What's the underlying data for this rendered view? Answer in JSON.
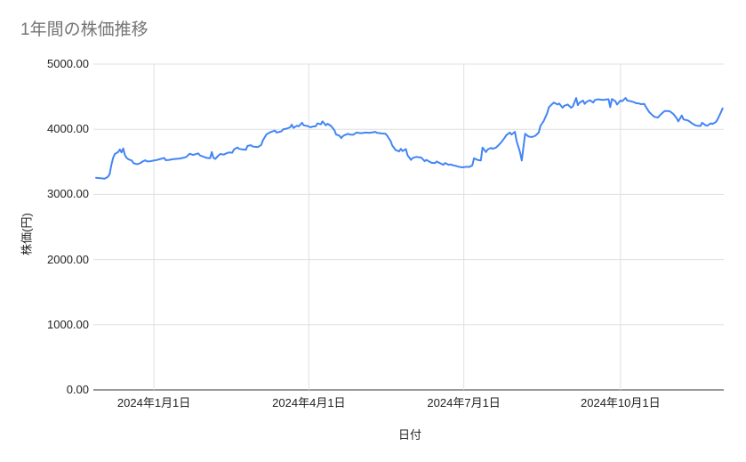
{
  "chart_data": {
    "type": "line",
    "title": "1年間の株価推移",
    "xlabel": "日付",
    "ylabel": "株価(円)",
    "ylim": [
      0,
      5000
    ],
    "y_ticks": [
      "0.00",
      "1000.00",
      "2000.00",
      "3000.00",
      "4000.00",
      "5000.00"
    ],
    "x_ticks": [
      {
        "label": "2024年1月1日",
        "day": 34
      },
      {
        "label": "2024年4月1日",
        "day": 125
      },
      {
        "label": "2024年7月1日",
        "day": 216
      },
      {
        "label": "2024年10月1日",
        "day": 308
      }
    ],
    "x_start_date": "2023-11-28",
    "x_end_date": "2024-11-29",
    "x_unit": "days_since_x_start_date",
    "grid": true,
    "legend": "none",
    "colors": {
      "line": "#4285f4",
      "grid": "#e0e0e0",
      "axis_line": "#333333",
      "tick_text": "#222222",
      "axis_title_text": "#222222",
      "title_text": "#757575",
      "background": "#ffffff"
    },
    "series": [
      {
        "name": "株価",
        "points": [
          [
            0,
            3255
          ],
          [
            2,
            3250
          ],
          [
            4,
            3245
          ],
          [
            5,
            3240
          ],
          [
            7,
            3270
          ],
          [
            8,
            3310
          ],
          [
            9,
            3450
          ],
          [
            10,
            3560
          ],
          [
            11,
            3620
          ],
          [
            13,
            3650
          ],
          [
            14,
            3690
          ],
          [
            15,
            3645
          ],
          [
            16,
            3705
          ],
          [
            17,
            3600
          ],
          [
            18,
            3560
          ],
          [
            19,
            3540
          ],
          [
            21,
            3520
          ],
          [
            22,
            3480
          ],
          [
            24,
            3465
          ],
          [
            26,
            3480
          ],
          [
            27,
            3500
          ],
          [
            29,
            3525
          ],
          [
            30,
            3505
          ],
          [
            32,
            3510
          ],
          [
            34,
            3520
          ],
          [
            36,
            3530
          ],
          [
            38,
            3545
          ],
          [
            40,
            3560
          ],
          [
            41,
            3525
          ],
          [
            43,
            3530
          ],
          [
            45,
            3540
          ],
          [
            47,
            3545
          ],
          [
            49,
            3550
          ],
          [
            51,
            3560
          ],
          [
            53,
            3575
          ],
          [
            55,
            3625
          ],
          [
            57,
            3605
          ],
          [
            58,
            3615
          ],
          [
            60,
            3630
          ],
          [
            61,
            3600
          ],
          [
            64,
            3570
          ],
          [
            65,
            3560
          ],
          [
            67,
            3555
          ],
          [
            68,
            3650
          ],
          [
            69,
            3560
          ],
          [
            70,
            3545
          ],
          [
            72,
            3600
          ],
          [
            73,
            3620
          ],
          [
            75,
            3610
          ],
          [
            77,
            3635
          ],
          [
            78,
            3645
          ],
          [
            80,
            3640
          ],
          [
            81,
            3690
          ],
          [
            83,
            3720
          ],
          [
            84,
            3700
          ],
          [
            86,
            3690
          ],
          [
            88,
            3685
          ],
          [
            89,
            3745
          ],
          [
            91,
            3755
          ],
          [
            92,
            3735
          ],
          [
            94,
            3730
          ],
          [
            95,
            3725
          ],
          [
            97,
            3760
          ],
          [
            98,
            3830
          ],
          [
            100,
            3920
          ],
          [
            102,
            3950
          ],
          [
            103,
            3960
          ],
          [
            105,
            3980
          ],
          [
            106,
            3950
          ],
          [
            107,
            3955
          ],
          [
            109,
            3970
          ],
          [
            110,
            4000
          ],
          [
            112,
            4010
          ],
          [
            114,
            4030
          ],
          [
            115,
            4070
          ],
          [
            116,
            4020
          ],
          [
            118,
            4055
          ],
          [
            119,
            4045
          ],
          [
            121,
            4100
          ],
          [
            122,
            4060
          ],
          [
            124,
            4050
          ],
          [
            126,
            4030
          ],
          [
            127,
            4040
          ],
          [
            129,
            4045
          ],
          [
            130,
            4090
          ],
          [
            132,
            4075
          ],
          [
            133,
            4120
          ],
          [
            135,
            4060
          ],
          [
            136,
            4085
          ],
          [
            138,
            4050
          ],
          [
            140,
            3985
          ],
          [
            141,
            3920
          ],
          [
            143,
            3900
          ],
          [
            144,
            3865
          ],
          [
            145,
            3895
          ],
          [
            146,
            3910
          ],
          [
            148,
            3930
          ],
          [
            149,
            3920
          ],
          [
            151,
            3915
          ],
          [
            153,
            3950
          ],
          [
            154,
            3945
          ],
          [
            156,
            3940
          ],
          [
            157,
            3945
          ],
          [
            159,
            3950
          ],
          [
            160,
            3945
          ],
          [
            162,
            3950
          ],
          [
            164,
            3960
          ],
          [
            165,
            3945
          ],
          [
            167,
            3940
          ],
          [
            168,
            3935
          ],
          [
            170,
            3930
          ],
          [
            171,
            3900
          ],
          [
            173,
            3820
          ],
          [
            174,
            3750
          ],
          [
            176,
            3680
          ],
          [
            178,
            3660
          ],
          [
            179,
            3700
          ],
          [
            180,
            3665
          ],
          [
            182,
            3695
          ],
          [
            183,
            3600
          ],
          [
            185,
            3530
          ],
          [
            186,
            3560
          ],
          [
            188,
            3575
          ],
          [
            190,
            3570
          ],
          [
            191,
            3565
          ],
          [
            193,
            3510
          ],
          [
            194,
            3530
          ],
          [
            196,
            3500
          ],
          [
            197,
            3485
          ],
          [
            199,
            3480
          ],
          [
            200,
            3505
          ],
          [
            202,
            3480
          ],
          [
            204,
            3455
          ],
          [
            205,
            3482
          ],
          [
            207,
            3455
          ],
          [
            208,
            3460
          ],
          [
            210,
            3445
          ],
          [
            211,
            3440
          ],
          [
            213,
            3425
          ],
          [
            215,
            3415
          ],
          [
            216,
            3420
          ],
          [
            218,
            3425
          ],
          [
            219,
            3420
          ],
          [
            221,
            3445
          ],
          [
            222,
            3555
          ],
          [
            224,
            3530
          ],
          [
            226,
            3520
          ],
          [
            227,
            3720
          ],
          [
            229,
            3650
          ],
          [
            230,
            3690
          ],
          [
            232,
            3715
          ],
          [
            233,
            3700
          ],
          [
            235,
            3720
          ],
          [
            236,
            3745
          ],
          [
            238,
            3800
          ],
          [
            240,
            3870
          ],
          [
            241,
            3910
          ],
          [
            243,
            3950
          ],
          [
            244,
            3920
          ],
          [
            246,
            3960
          ],
          [
            247,
            3820
          ],
          [
            249,
            3650
          ],
          [
            250,
            3520
          ],
          [
            252,
            3930
          ],
          [
            254,
            3890
          ],
          [
            256,
            3880
          ],
          [
            258,
            3900
          ],
          [
            260,
            3950
          ],
          [
            261,
            4050
          ],
          [
            263,
            4130
          ],
          [
            265,
            4250
          ],
          [
            266,
            4340
          ],
          [
            268,
            4390
          ],
          [
            269,
            4410
          ],
          [
            271,
            4380
          ],
          [
            272,
            4395
          ],
          [
            274,
            4330
          ],
          [
            275,
            4360
          ],
          [
            277,
            4380
          ],
          [
            279,
            4330
          ],
          [
            280,
            4350
          ],
          [
            282,
            4480
          ],
          [
            283,
            4370
          ],
          [
            284,
            4410
          ],
          [
            286,
            4440
          ],
          [
            287,
            4390
          ],
          [
            288,
            4420
          ],
          [
            290,
            4445
          ],
          [
            292,
            4410
          ],
          [
            293,
            4450
          ],
          [
            295,
            4460
          ],
          [
            296,
            4455
          ],
          [
            298,
            4450
          ],
          [
            299,
            4455
          ],
          [
            301,
            4460
          ],
          [
            302,
            4340
          ],
          [
            303,
            4465
          ],
          [
            305,
            4430
          ],
          [
            306,
            4380
          ],
          [
            308,
            4440
          ],
          [
            309,
            4430
          ],
          [
            311,
            4480
          ],
          [
            312,
            4440
          ],
          [
            314,
            4430
          ],
          [
            316,
            4415
          ],
          [
            317,
            4400
          ],
          [
            319,
            4395
          ],
          [
            320,
            4385
          ],
          [
            322,
            4390
          ],
          [
            323,
            4340
          ],
          [
            325,
            4260
          ],
          [
            327,
            4210
          ],
          [
            328,
            4190
          ],
          [
            330,
            4180
          ],
          [
            331,
            4210
          ],
          [
            333,
            4260
          ],
          [
            334,
            4280
          ],
          [
            336,
            4280
          ],
          [
            337,
            4275
          ],
          [
            339,
            4235
          ],
          [
            341,
            4170
          ],
          [
            342,
            4120
          ],
          [
            344,
            4210
          ],
          [
            345,
            4150
          ],
          [
            347,
            4140
          ],
          [
            348,
            4130
          ],
          [
            350,
            4090
          ],
          [
            352,
            4060
          ],
          [
            353,
            4055
          ],
          [
            355,
            4050
          ],
          [
            356,
            4100
          ],
          [
            358,
            4060
          ],
          [
            359,
            4055
          ],
          [
            361,
            4090
          ],
          [
            362,
            4080
          ],
          [
            364,
            4110
          ],
          [
            365,
            4150
          ],
          [
            367,
            4260
          ],
          [
            368,
            4320
          ]
        ]
      }
    ]
  }
}
